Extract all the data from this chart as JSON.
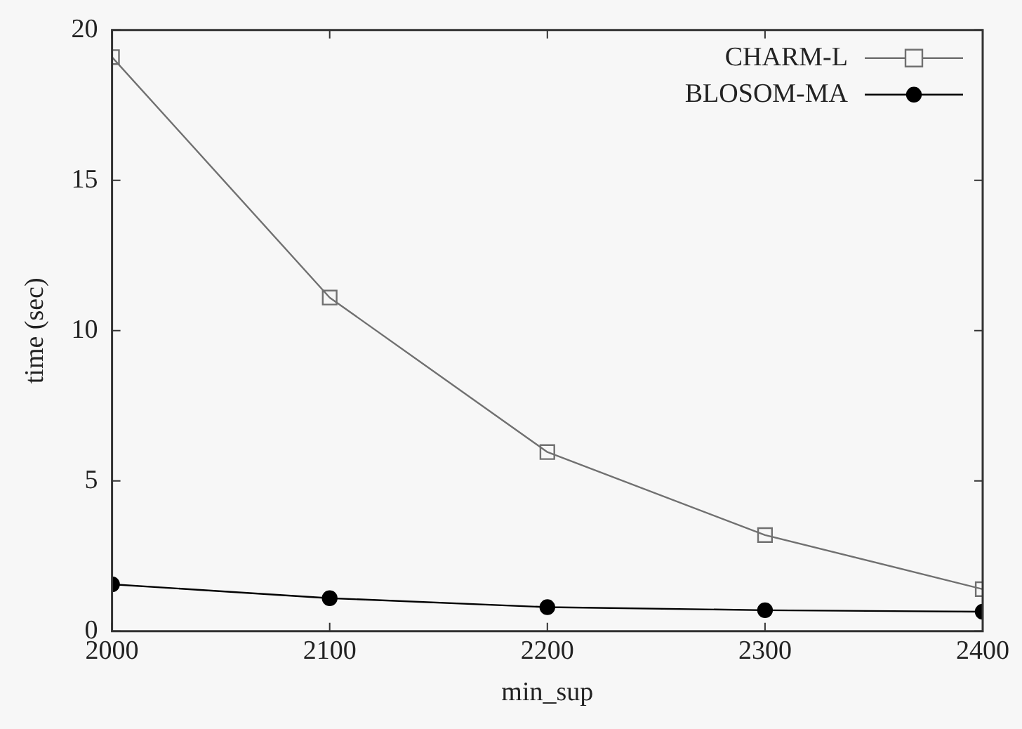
{
  "chart_data": {
    "type": "line",
    "xlabel": "min_sup",
    "ylabel": "time (sec)",
    "x": [
      2000,
      2100,
      2200,
      2300,
      2400
    ],
    "series": [
      {
        "name": "CHARM-L",
        "color": "#707070",
        "marker": "square",
        "values": [
          19.1,
          11.1,
          5.96,
          3.2,
          1.4
        ]
      },
      {
        "name": "BLOSOM-MA",
        "color": "#000000",
        "marker": "circle",
        "values": [
          1.56,
          1.1,
          0.8,
          0.7,
          0.65
        ]
      }
    ],
    "xlim": [
      2000,
      2400
    ],
    "xticks": [
      2000,
      2100,
      2200,
      2300,
      2400
    ],
    "ylim": [
      0,
      20
    ],
    "yticks": [
      0,
      5,
      10,
      15,
      20
    ],
    "grid": false,
    "legend": "top right",
    "line_style": "solid"
  }
}
